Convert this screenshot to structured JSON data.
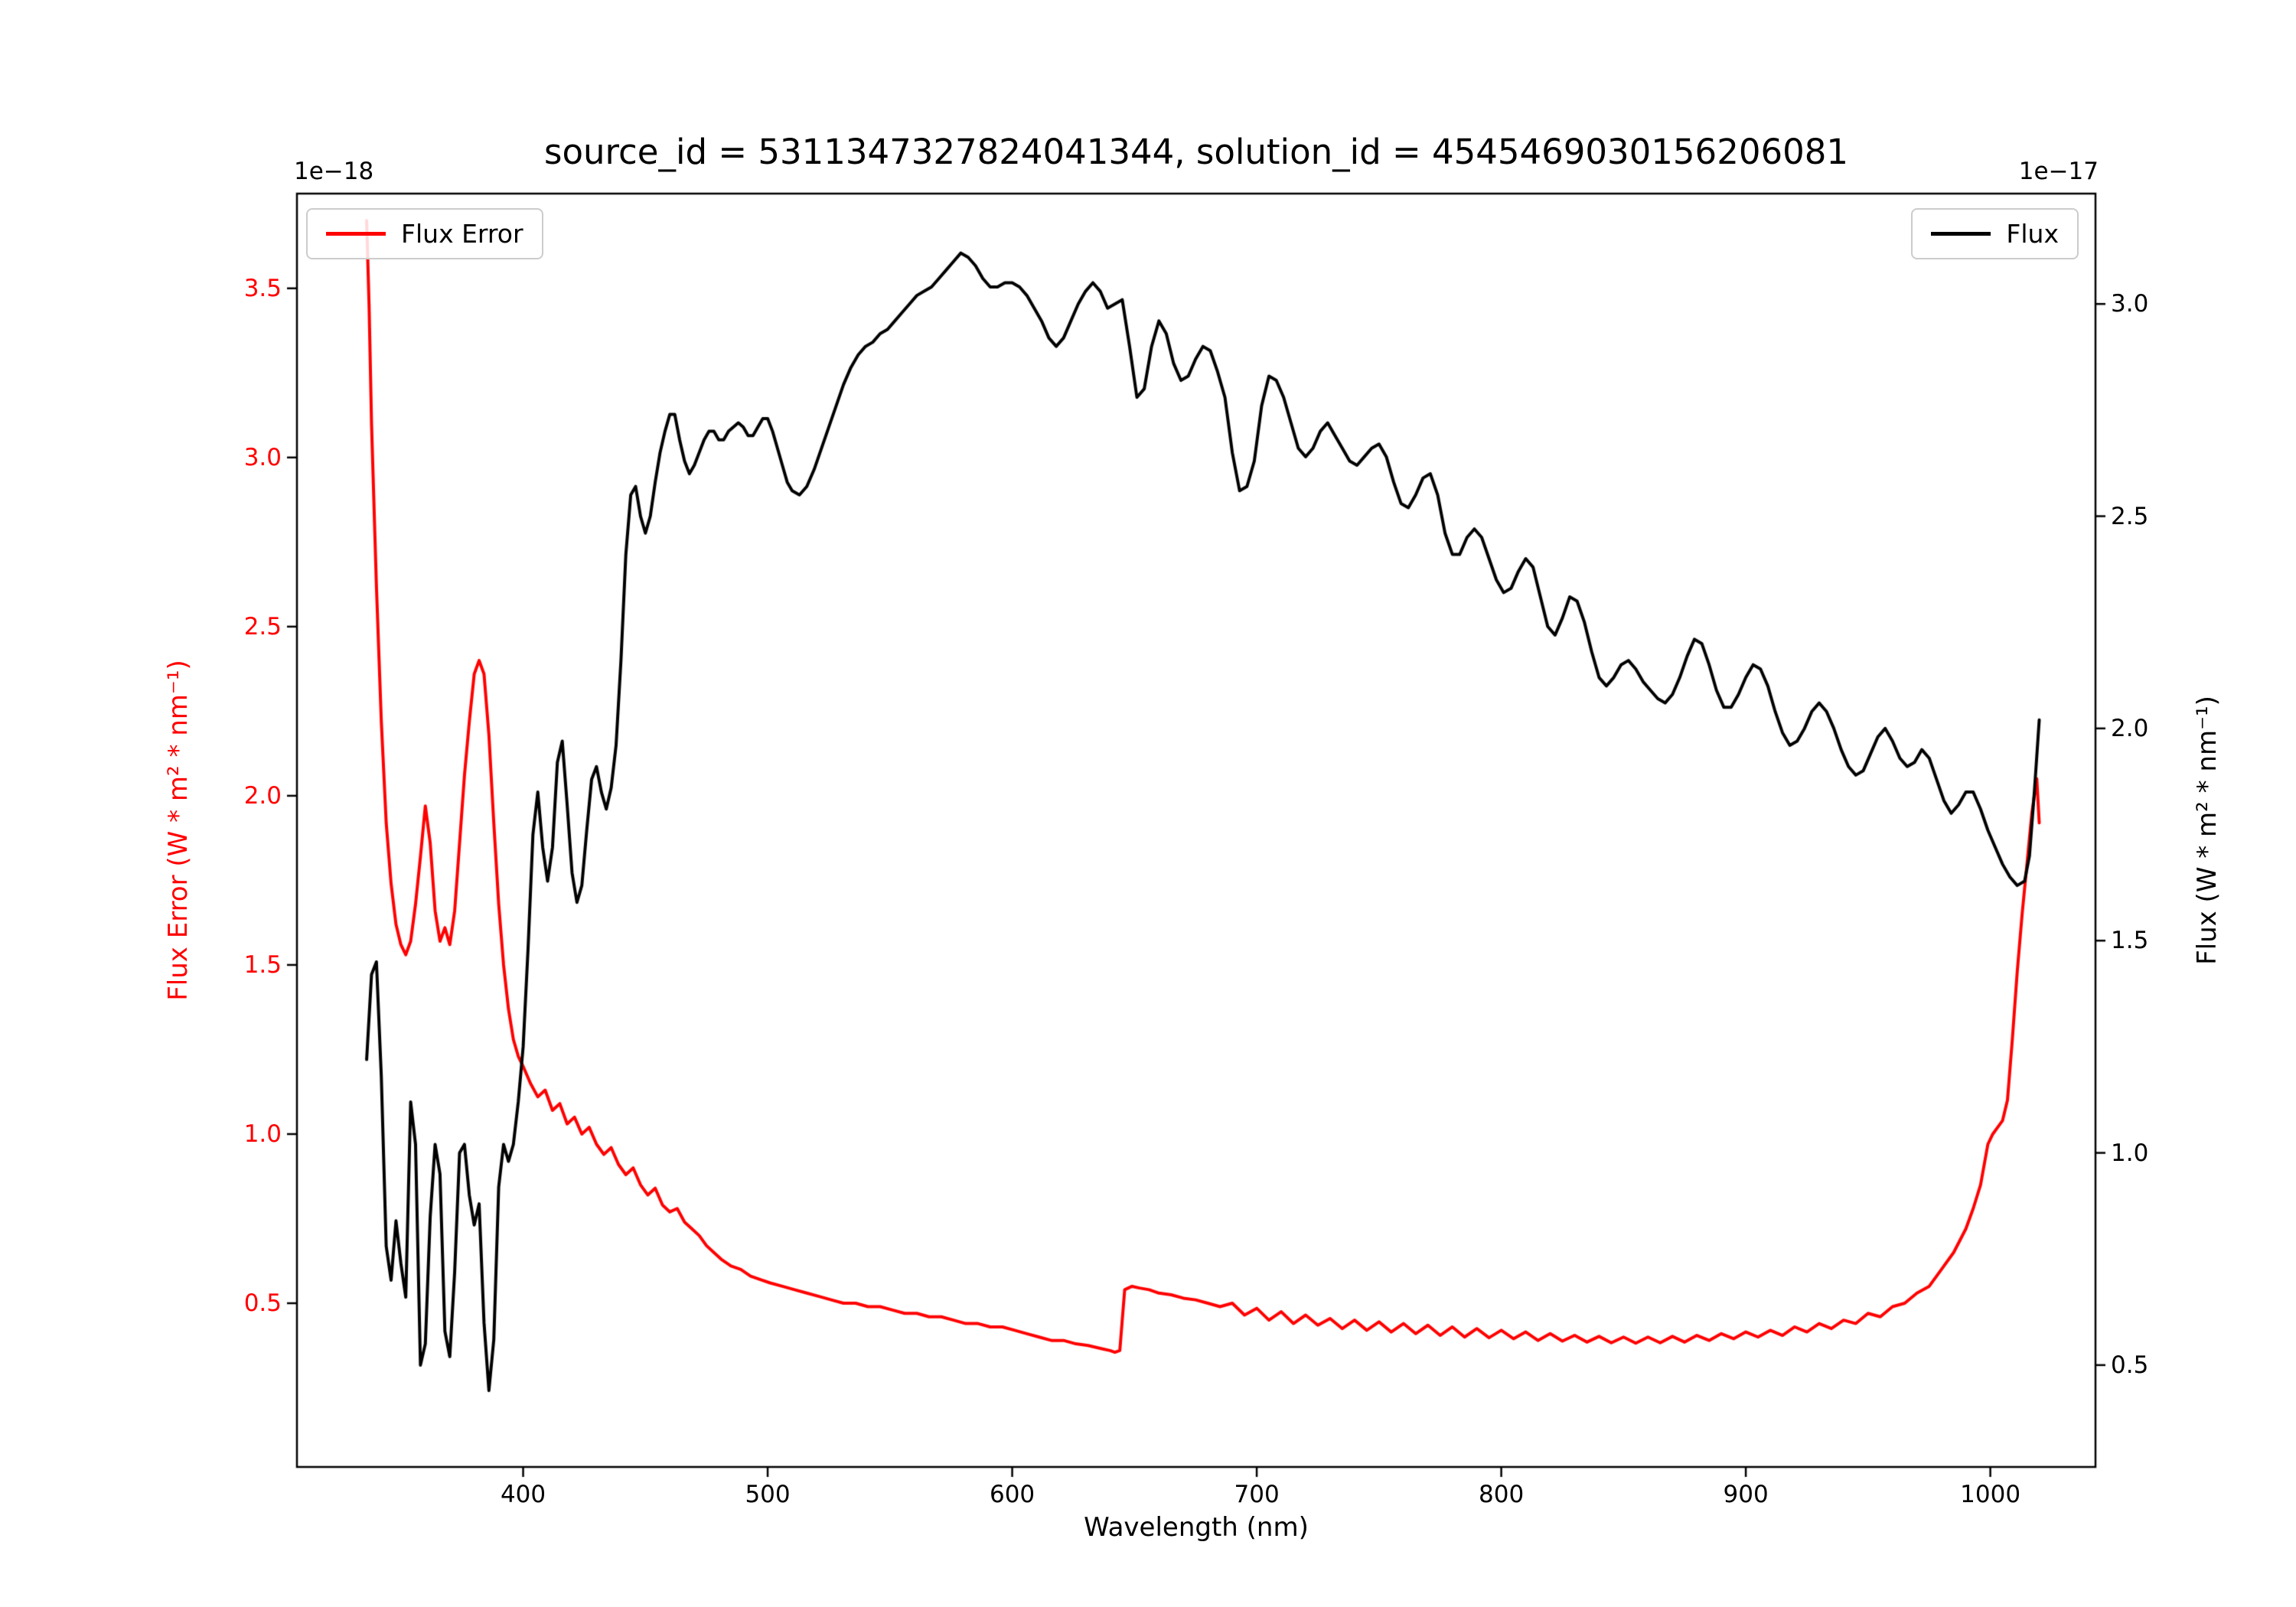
{
  "figure": {
    "title": "source_id = 5311347327824041344, solution_id = 4545469030156206081",
    "background": "#ffffff"
  },
  "x_axis": {
    "label": "Wavelength (nm)",
    "ticks": [
      400,
      500,
      600,
      700,
      800,
      900,
      1000
    ],
    "tick_labels": [
      "400",
      "500",
      "600",
      "700",
      "800",
      "900",
      "1000"
    ],
    "range": [
      307.5,
      1043
    ]
  },
  "left_axis": {
    "label": "Flux Error (W * m² * nm⁻¹)",
    "offset_text": "1e−18",
    "ticks": [
      0.5,
      1.0,
      1.5,
      2.0,
      2.5,
      3.0,
      3.5
    ],
    "tick_labels": [
      "0.5",
      "1.0",
      "1.5",
      "2.0",
      "2.5",
      "3.0",
      "3.5"
    ],
    "range": [
      0.016,
      3.78
    ],
    "color": "#ff0000"
  },
  "right_axis": {
    "label": "Flux (W * m² * nm⁻¹)",
    "offset_text": "1e−17",
    "ticks": [
      0.5,
      1.0,
      1.5,
      2.0,
      2.5,
      3.0
    ],
    "tick_labels": [
      "0.5",
      "1.0",
      "1.5",
      "2.0",
      "2.5",
      "3.0"
    ],
    "range": [
      0.26,
      3.26
    ],
    "color": "#000000"
  },
  "legends": {
    "flux_error": {
      "label": "Flux Error",
      "color": "#ff0000"
    },
    "flux": {
      "label": "Flux",
      "color": "#000000"
    }
  },
  "chart_data": {
    "type": "line",
    "title": "source_id = 5311347327824041344, solution_id = 4545469030156206081",
    "xlabel": "Wavelength (nm)",
    "ylabel_left": "Flux Error (W * m² * nm⁻¹)",
    "ylabel_right": "Flux (W * m² * nm⁻¹)",
    "left_scale_offset": "1e−18",
    "right_scale_offset": "1e−17",
    "grid": false,
    "legend_positions": [
      "upper left",
      "upper right"
    ],
    "x_range": [
      307.5,
      1043
    ],
    "left_ylim": [
      0.016,
      3.78
    ],
    "right_ylim": [
      0.26,
      3.26
    ],
    "series": [
      {
        "name": "Flux Error",
        "axis": "left",
        "color": "#ff0000",
        "x": [
          336,
          337,
          338,
          340,
          342,
          344,
          346,
          348,
          350,
          352,
          354,
          356,
          358,
          360,
          362,
          364,
          366,
          368,
          370,
          372,
          374,
          376,
          378,
          380,
          382,
          384,
          386,
          388,
          390,
          392,
          394,
          396,
          398,
          400,
          403,
          406,
          409,
          412,
          415,
          418,
          421,
          424,
          427,
          430,
          433,
          436,
          439,
          442,
          445,
          448,
          451,
          454,
          457,
          460,
          463,
          466,
          469,
          472,
          475,
          478,
          481,
          485,
          489,
          493,
          497,
          501,
          506,
          511,
          516,
          521,
          526,
          531,
          536,
          541,
          546,
          551,
          556,
          561,
          566,
          571,
          576,
          581,
          586,
          591,
          596,
          601,
          606,
          611,
          616,
          621,
          626,
          631,
          634,
          637,
          640,
          642,
          644,
          646,
          649,
          652,
          656,
          660,
          665,
          670,
          675,
          680,
          685,
          690,
          695,
          700,
          705,
          710,
          715,
          720,
          725,
          730,
          735,
          740,
          745,
          750,
          755,
          760,
          765,
          770,
          775,
          780,
          785,
          790,
          795,
          800,
          805,
          810,
          815,
          820,
          825,
          830,
          835,
          840,
          845,
          850,
          855,
          860,
          865,
          870,
          875,
          880,
          885,
          890,
          895,
          900,
          905,
          910,
          915,
          920,
          925,
          930,
          935,
          940,
          945,
          950,
          955,
          960,
          965,
          970,
          975,
          980,
          985,
          990,
          993,
          996,
          999,
          1001,
          1003,
          1005,
          1007,
          1009,
          1011,
          1013,
          1015,
          1017,
          1019,
          1020
        ],
        "y": [
          3.7,
          3.45,
          3.1,
          2.62,
          2.22,
          1.92,
          1.74,
          1.62,
          1.56,
          1.53,
          1.57,
          1.68,
          1.82,
          1.97,
          1.86,
          1.66,
          1.57,
          1.61,
          1.56,
          1.66,
          1.86,
          2.06,
          2.22,
          2.36,
          2.4,
          2.36,
          2.18,
          1.92,
          1.68,
          1.5,
          1.37,
          1.28,
          1.23,
          1.2,
          1.15,
          1.11,
          1.13,
          1.07,
          1.09,
          1.03,
          1.05,
          1.0,
          1.02,
          0.97,
          0.94,
          0.96,
          0.91,
          0.88,
          0.9,
          0.85,
          0.82,
          0.84,
          0.79,
          0.77,
          0.78,
          0.74,
          0.72,
          0.7,
          0.67,
          0.65,
          0.63,
          0.61,
          0.6,
          0.58,
          0.57,
          0.56,
          0.55,
          0.54,
          0.53,
          0.52,
          0.51,
          0.5,
          0.5,
          0.49,
          0.49,
          0.48,
          0.47,
          0.47,
          0.46,
          0.46,
          0.45,
          0.44,
          0.44,
          0.43,
          0.43,
          0.42,
          0.41,
          0.4,
          0.39,
          0.39,
          0.38,
          0.375,
          0.37,
          0.365,
          0.36,
          0.355,
          0.36,
          0.54,
          0.55,
          0.545,
          0.54,
          0.53,
          0.525,
          0.515,
          0.51,
          0.5,
          0.49,
          0.5,
          0.465,
          0.485,
          0.45,
          0.475,
          0.44,
          0.465,
          0.435,
          0.455,
          0.425,
          0.45,
          0.42,
          0.445,
          0.415,
          0.44,
          0.41,
          0.435,
          0.405,
          0.43,
          0.4,
          0.425,
          0.398,
          0.42,
          0.395,
          0.415,
          0.39,
          0.41,
          0.388,
          0.405,
          0.385,
          0.402,
          0.383,
          0.4,
          0.382,
          0.4,
          0.383,
          0.402,
          0.385,
          0.405,
          0.39,
          0.41,
          0.395,
          0.415,
          0.4,
          0.42,
          0.405,
          0.43,
          0.415,
          0.44,
          0.425,
          0.45,
          0.44,
          0.47,
          0.46,
          0.49,
          0.5,
          0.53,
          0.55,
          0.6,
          0.65,
          0.72,
          0.78,
          0.85,
          0.97,
          1.0,
          1.02,
          1.04,
          1.1,
          1.28,
          1.48,
          1.65,
          1.8,
          1.95,
          2.05,
          1.92
        ]
      },
      {
        "name": "Flux",
        "axis": "right",
        "color": "#000000",
        "x": [
          336,
          338,
          340,
          342,
          344,
          346,
          348,
          350,
          352,
          354,
          356,
          358,
          360,
          362,
          364,
          366,
          368,
          370,
          372,
          374,
          376,
          378,
          380,
          382,
          384,
          386,
          388,
          390,
          392,
          394,
          396,
          398,
          400,
          402,
          404,
          406,
          408,
          410,
          412,
          414,
          416,
          418,
          420,
          422,
          424,
          426,
          428,
          430,
          432,
          434,
          436,
          438,
          440,
          442,
          444,
          446,
          448,
          450,
          452,
          454,
          456,
          458,
          460,
          462,
          464,
          466,
          468,
          470,
          472,
          474,
          476,
          478,
          480,
          482,
          484,
          486,
          488,
          490,
          492,
          494,
          496,
          498,
          500,
          502,
          504,
          506,
          508,
          510,
          513,
          516,
          519,
          522,
          525,
          528,
          531,
          534,
          537,
          540,
          543,
          546,
          549,
          552,
          555,
          558,
          561,
          564,
          567,
          570,
          573,
          576,
          579,
          582,
          585,
          588,
          591,
          594,
          597,
          600,
          603,
          606,
          609,
          612,
          615,
          618,
          621,
          624,
          627,
          630,
          633,
          636,
          639,
          642,
          645,
          648,
          651,
          654,
          657,
          660,
          663,
          666,
          669,
          672,
          675,
          678,
          681,
          684,
          687,
          690,
          693,
          696,
          699,
          702,
          705,
          708,
          711,
          714,
          717,
          720,
          723,
          726,
          729,
          732,
          735,
          738,
          741,
          744,
          747,
          750,
          753,
          756,
          759,
          762,
          765,
          768,
          771,
          774,
          777,
          780,
          783,
          786,
          789,
          792,
          795,
          798,
          801,
          804,
          807,
          810,
          813,
          816,
          819,
          822,
          825,
          828,
          831,
          834,
          837,
          840,
          843,
          846,
          849,
          852,
          855,
          858,
          861,
          864,
          867,
          870,
          873,
          876,
          879,
          882,
          885,
          888,
          891,
          894,
          897,
          900,
          903,
          906,
          909,
          912,
          915,
          918,
          921,
          924,
          927,
          930,
          933,
          936,
          939,
          942,
          945,
          948,
          951,
          954,
          957,
          960,
          963,
          966,
          969,
          972,
          975,
          978,
          981,
          984,
          987,
          990,
          993,
          996,
          999,
          1002,
          1005,
          1008,
          1011,
          1014,
          1016,
          1018,
          1020
        ],
        "y": [
          1.22,
          1.42,
          1.45,
          1.18,
          0.78,
          0.7,
          0.84,
          0.74,
          0.66,
          1.12,
          1.02,
          0.5,
          0.55,
          0.85,
          1.02,
          0.95,
          0.58,
          0.52,
          0.72,
          1.0,
          1.02,
          0.9,
          0.83,
          0.88,
          0.6,
          0.44,
          0.56,
          0.92,
          1.02,
          0.98,
          1.02,
          1.12,
          1.25,
          1.48,
          1.75,
          1.85,
          1.72,
          1.64,
          1.72,
          1.92,
          1.97,
          1.82,
          1.66,
          1.59,
          1.63,
          1.76,
          1.88,
          1.91,
          1.85,
          1.81,
          1.86,
          1.96,
          2.16,
          2.41,
          2.55,
          2.57,
          2.5,
          2.46,
          2.5,
          2.58,
          2.65,
          2.7,
          2.74,
          2.74,
          2.68,
          2.63,
          2.6,
          2.62,
          2.65,
          2.68,
          2.7,
          2.7,
          2.68,
          2.68,
          2.7,
          2.71,
          2.72,
          2.71,
          2.69,
          2.69,
          2.71,
          2.73,
          2.73,
          2.7,
          2.66,
          2.62,
          2.58,
          2.56,
          2.55,
          2.57,
          2.61,
          2.66,
          2.71,
          2.76,
          2.81,
          2.85,
          2.88,
          2.9,
          2.91,
          2.93,
          2.94,
          2.96,
          2.98,
          3.0,
          3.02,
          3.03,
          3.04,
          3.06,
          3.08,
          3.1,
          3.12,
          3.11,
          3.09,
          3.06,
          3.04,
          3.04,
          3.05,
          3.05,
          3.04,
          3.02,
          2.99,
          2.96,
          2.92,
          2.9,
          2.92,
          2.96,
          3.0,
          3.03,
          3.05,
          3.03,
          2.99,
          3.0,
          3.01,
          2.9,
          2.78,
          2.8,
          2.9,
          2.96,
          2.93,
          2.86,
          2.82,
          2.83,
          2.87,
          2.9,
          2.89,
          2.84,
          2.78,
          2.65,
          2.56,
          2.57,
          2.63,
          2.76,
          2.83,
          2.82,
          2.78,
          2.72,
          2.66,
          2.64,
          2.66,
          2.7,
          2.72,
          2.69,
          2.66,
          2.63,
          2.62,
          2.64,
          2.66,
          2.67,
          2.64,
          2.58,
          2.53,
          2.52,
          2.55,
          2.59,
          2.6,
          2.55,
          2.46,
          2.41,
          2.41,
          2.45,
          2.47,
          2.45,
          2.4,
          2.35,
          2.32,
          2.33,
          2.37,
          2.4,
          2.38,
          2.31,
          2.24,
          2.22,
          2.26,
          2.31,
          2.3,
          2.25,
          2.18,
          2.12,
          2.1,
          2.12,
          2.15,
          2.16,
          2.14,
          2.11,
          2.09,
          2.07,
          2.06,
          2.08,
          2.12,
          2.17,
          2.21,
          2.2,
          2.15,
          2.09,
          2.05,
          2.05,
          2.08,
          2.12,
          2.15,
          2.14,
          2.1,
          2.04,
          1.99,
          1.96,
          1.97,
          2.0,
          2.04,
          2.06,
          2.04,
          2.0,
          1.95,
          1.91,
          1.89,
          1.9,
          1.94,
          1.98,
          2.0,
          1.97,
          1.93,
          1.91,
          1.92,
          1.95,
          1.93,
          1.88,
          1.83,
          1.8,
          1.82,
          1.85,
          1.85,
          1.81,
          1.76,
          1.72,
          1.68,
          1.65,
          1.63,
          1.64,
          1.7,
          1.85,
          2.02
        ]
      }
    ]
  }
}
